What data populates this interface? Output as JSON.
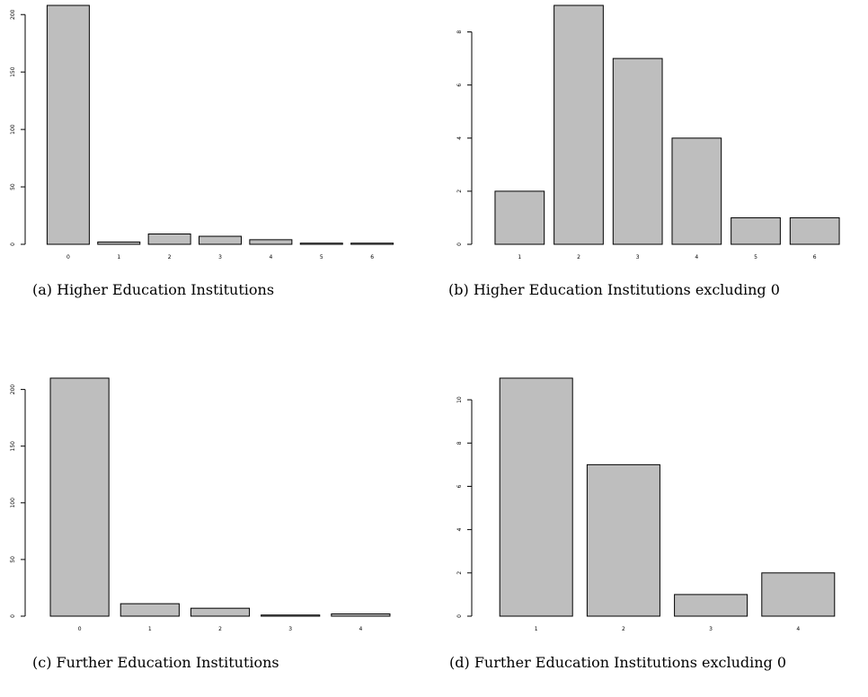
{
  "chart_data": [
    {
      "type": "bar",
      "caption": "(a)  Higher Education Institutions",
      "categories": [
        "0",
        "1",
        "2",
        "3",
        "4",
        "5",
        "6"
      ],
      "values": [
        208,
        2,
        9,
        7,
        4,
        1,
        1
      ],
      "yticks": [
        0,
        50,
        100,
        150,
        200
      ],
      "ylim": [
        0,
        208
      ],
      "bar_color": "#bebebe",
      "title": "",
      "xlabel": "",
      "ylabel": ""
    },
    {
      "type": "bar",
      "caption": "(b)  Higher Education Institutions excluding 0",
      "categories": [
        "1",
        "2",
        "3",
        "4",
        "5",
        "6"
      ],
      "values": [
        2,
        9,
        7,
        4,
        1,
        1
      ],
      "yticks": [
        0,
        2,
        4,
        6,
        8
      ],
      "ylim": [
        0,
        9
      ],
      "bar_color": "#bebebe",
      "title": "",
      "xlabel": "",
      "ylabel": ""
    },
    {
      "type": "bar",
      "caption": "(c)  Further Education Institutions",
      "categories": [
        "0",
        "1",
        "2",
        "3",
        "4"
      ],
      "values": [
        210,
        11,
        7,
        1,
        2
      ],
      "yticks": [
        0,
        50,
        100,
        150,
        200
      ],
      "ylim": [
        0,
        210
      ],
      "bar_color": "#bebebe",
      "title": "",
      "xlabel": "",
      "ylabel": ""
    },
    {
      "type": "bar",
      "caption": "(d)  Further Education Institutions excluding 0",
      "categories": [
        "1",
        "2",
        "3",
        "4"
      ],
      "values": [
        11,
        7,
        1,
        2
      ],
      "yticks": [
        0,
        2,
        4,
        6,
        8,
        10
      ],
      "ylim": [
        0,
        11
      ],
      "bar_color": "#bebebe",
      "title": "",
      "xlabel": "",
      "ylabel": ""
    }
  ]
}
